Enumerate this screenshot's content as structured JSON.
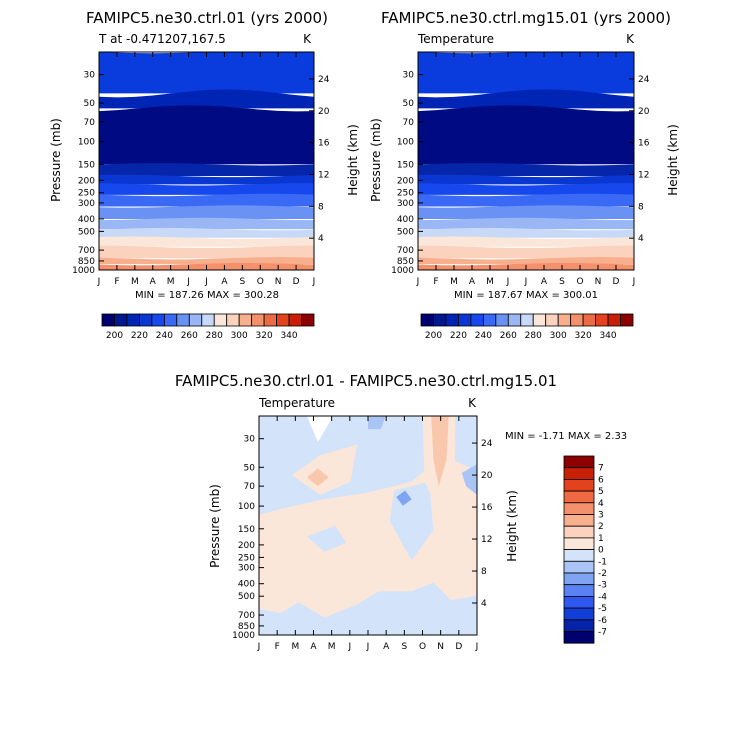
{
  "chart_data": [
    {
      "type": "heatmap",
      "title": "FAMIPC5.ne30.ctrl.01 (yrs 2000)",
      "subtitle_left": "T at -0.471207,167.5",
      "subtitle_right": "K",
      "ylabel": "Pressure (mb)",
      "ylabel_right": "Height (km)",
      "x_ticks": [
        "J",
        "F",
        "M",
        "A",
        "M",
        "J",
        "J",
        "A",
        "S",
        "O",
        "N",
        "D",
        "J"
      ],
      "y_ticks": [
        "30",
        "50",
        "70",
        "100",
        "150",
        "200",
        "250",
        "300",
        "400",
        "500",
        "700",
        "850",
        "1000"
      ],
      "y_ticks_right": [
        "24",
        "20",
        "16",
        "12",
        "8",
        "4"
      ],
      "stats": "MIN = 187.26  MAX = 300.28",
      "colorbar_labels": [
        "200",
        "220",
        "240",
        "260",
        "280",
        "300",
        "320",
        "340"
      ],
      "bands": [
        {
          "p_top": 20,
          "p_bot": 42,
          "value": 205,
          "color": "#0a3bdc"
        },
        {
          "p_top": 42,
          "p_bot": 55,
          "value": 195,
          "color": "#0024b4"
        },
        {
          "p_top": 55,
          "p_bot": 150,
          "value": 190,
          "color": "#000a82"
        },
        {
          "p_top": 150,
          "p_bot": 185,
          "value": 205,
          "color": "#0626aa"
        },
        {
          "p_top": 185,
          "p_bot": 215,
          "value": 212,
          "color": "#0a36d2"
        },
        {
          "p_top": 215,
          "p_bot": 260,
          "value": 220,
          "color": "#1648ee"
        },
        {
          "p_top": 260,
          "p_bot": 320,
          "value": 230,
          "color": "#3a6af5"
        },
        {
          "p_top": 320,
          "p_bot": 400,
          "value": 240,
          "color": "#6a92f5"
        },
        {
          "p_top": 400,
          "p_bot": 480,
          "value": 250,
          "color": "#9ab6f5"
        },
        {
          "p_top": 480,
          "p_bot": 560,
          "value": 260,
          "color": "#c8d8f7"
        },
        {
          "p_top": 560,
          "p_bot": 660,
          "value": 272,
          "color": "#fbe7d9"
        },
        {
          "p_top": 660,
          "p_bot": 810,
          "value": 282,
          "color": "#fad2bd"
        },
        {
          "p_top": 810,
          "p_bot": 900,
          "value": 290,
          "color": "#f7af8e"
        },
        {
          "p_top": 900,
          "p_bot": 1000,
          "value": 296,
          "color": "#f4906c"
        }
      ]
    },
    {
      "type": "heatmap",
      "title": "FAMIPC5.ne30.ctrl.mg15.01 (yrs 2000)",
      "subtitle_left": "Temperature",
      "subtitle_right": "K",
      "ylabel": "Pressure (mb)",
      "ylabel_right": "Height (km)",
      "x_ticks": [
        "J",
        "F",
        "M",
        "A",
        "M",
        "J",
        "J",
        "A",
        "S",
        "O",
        "N",
        "D",
        "J"
      ],
      "y_ticks": [
        "30",
        "50",
        "70",
        "100",
        "150",
        "200",
        "250",
        "300",
        "400",
        "500",
        "700",
        "850",
        "1000"
      ],
      "y_ticks_right": [
        "24",
        "20",
        "16",
        "12",
        "8",
        "4"
      ],
      "stats": "MIN = 187.67  MAX = 300.01",
      "colorbar_labels": [
        "200",
        "220",
        "240",
        "260",
        "280",
        "300",
        "320",
        "340"
      ],
      "bands": [
        {
          "p_top": 20,
          "p_bot": 42,
          "value": 205,
          "color": "#0a3bdc"
        },
        {
          "p_top": 42,
          "p_bot": 55,
          "value": 195,
          "color": "#0024b4"
        },
        {
          "p_top": 55,
          "p_bot": 150,
          "value": 190,
          "color": "#000a82"
        },
        {
          "p_top": 150,
          "p_bot": 185,
          "value": 205,
          "color": "#0626aa"
        },
        {
          "p_top": 185,
          "p_bot": 215,
          "value": 212,
          "color": "#0a36d2"
        },
        {
          "p_top": 215,
          "p_bot": 260,
          "value": 220,
          "color": "#1648ee"
        },
        {
          "p_top": 260,
          "p_bot": 320,
          "value": 230,
          "color": "#3a6af5"
        },
        {
          "p_top": 320,
          "p_bot": 400,
          "value": 240,
          "color": "#6a92f5"
        },
        {
          "p_top": 400,
          "p_bot": 480,
          "value": 250,
          "color": "#9ab6f5"
        },
        {
          "p_top": 480,
          "p_bot": 560,
          "value": 260,
          "color": "#c8d8f7"
        },
        {
          "p_top": 560,
          "p_bot": 660,
          "value": 272,
          "color": "#fbe7d9"
        },
        {
          "p_top": 660,
          "p_bot": 810,
          "value": 282,
          "color": "#fad2bd"
        },
        {
          "p_top": 810,
          "p_bot": 900,
          "value": 290,
          "color": "#f7af8e"
        },
        {
          "p_top": 900,
          "p_bot": 1000,
          "value": 296,
          "color": "#f4906c"
        }
      ]
    },
    {
      "type": "heatmap",
      "title": "FAMIPC5.ne30.ctrl.01 - FAMIPC5.ne30.ctrl.mg15.01",
      "subtitle_left": "Temperature",
      "subtitle_right": "K",
      "ylabel": "Pressure (mb)",
      "ylabel_right": "Height (km)",
      "x_ticks": [
        "J",
        "F",
        "M",
        "A",
        "M",
        "J",
        "J",
        "A",
        "S",
        "O",
        "N",
        "D",
        "J"
      ],
      "y_ticks": [
        "30",
        "50",
        "70",
        "100",
        "150",
        "200",
        "250",
        "300",
        "400",
        "500",
        "700",
        "850",
        "1000"
      ],
      "y_ticks_right": [
        "24",
        "20",
        "16",
        "12",
        "8",
        "4"
      ],
      "stats": "MIN =   -1.71 MAX =    2.33",
      "colorbar_labels": [
        "7",
        "6",
        "5",
        "4",
        "3",
        "2",
        "1",
        "0",
        "-1",
        "-2",
        "-3",
        "-4",
        "-5",
        "-6",
        "-7"
      ],
      "colors": {
        "pos1": "#fbe7d9",
        "neg1": "#d3e4fa",
        "neg2": "#a9c4f5",
        "pos2": "#f9c7ab",
        "neg_mid": "#7fa5f2"
      }
    }
  ],
  "colorbar_main": [
    "#00006e",
    "#00188f",
    "#0024b4",
    "#0a36d2",
    "#1648ee",
    "#3a6af5",
    "#6a92f5",
    "#9ab6f5",
    "#c8d8f7",
    "#fbe7d9",
    "#fad2bd",
    "#f7af8e",
    "#f4906c",
    "#ee6a42",
    "#e2421e",
    "#c82008",
    "#8c0000"
  ],
  "colorbar_diff": [
    "#8c0000",
    "#c82008",
    "#e2421e",
    "#ee6a42",
    "#f4906c",
    "#f7af8e",
    "#fad2bd",
    "#fbe7d9",
    "#d3e4fa",
    "#a9c4f5",
    "#7fa5f2",
    "#5a82f2",
    "#2e58f0",
    "#123ed8",
    "#0622a6",
    "#00006e"
  ]
}
